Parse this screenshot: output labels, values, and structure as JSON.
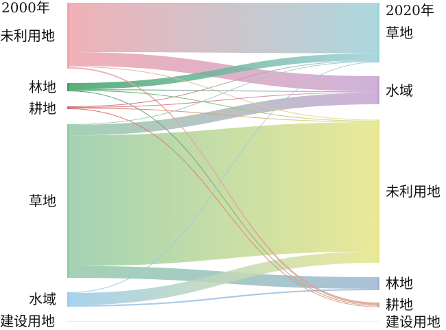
{
  "chart_data": {
    "type": "sankey",
    "left_year": "2000年",
    "right_year": "2020年",
    "left_nodes": [
      {
        "id": "L_unused",
        "label": "未利用地",
        "color": "#eea3ab"
      },
      {
        "id": "L_forest",
        "label": "林地",
        "color": "#3f9f63"
      },
      {
        "id": "L_farm",
        "label": "耕地",
        "color": "#d86464"
      },
      {
        "id": "L_grass",
        "label": "草地",
        "color": "#93caa6"
      },
      {
        "id": "L_water",
        "label": "水域",
        "color": "#99c9ea"
      },
      {
        "id": "L_built",
        "label": "建设用地",
        "color": "#e8e8e8"
      }
    ],
    "right_nodes": [
      {
        "id": "R_grass",
        "label": "草地",
        "color": "#9dd1d8"
      },
      {
        "id": "R_water",
        "label": "水域",
        "color": "#c7a4d2"
      },
      {
        "id": "R_unused",
        "label": "未利用地",
        "color": "#e7e586"
      },
      {
        "id": "R_forest",
        "label": "林地",
        "color": "#9bb6d2"
      },
      {
        "id": "R_farm",
        "label": "耕地",
        "color": "#d9a38e"
      },
      {
        "id": "R_built",
        "label": "建设用地",
        "color": "#eeeeee"
      }
    ],
    "links": [
      {
        "source": "L_unused",
        "target": "R_grass",
        "value": 72
      },
      {
        "source": "L_unused",
        "target": "R_water",
        "value": 20
      },
      {
        "source": "L_unused",
        "target": "R_farm",
        "value": 2
      },
      {
        "source": "L_unused",
        "target": "R_unused",
        "value": 2
      },
      {
        "source": "L_forest",
        "target": "R_grass",
        "value": 10
      },
      {
        "source": "L_forest",
        "target": "R_water",
        "value": 1
      },
      {
        "source": "L_forest",
        "target": "R_unused",
        "value": 1
      },
      {
        "source": "L_forest",
        "target": "R_farm",
        "value": 1
      },
      {
        "source": "L_farm",
        "target": "R_grass",
        "value": 1
      },
      {
        "source": "L_farm",
        "target": "R_water",
        "value": 1
      },
      {
        "source": "L_farm",
        "target": "R_unused",
        "value": 1
      },
      {
        "source": "L_farm",
        "target": "R_farm",
        "value": 1
      },
      {
        "source": "L_grass",
        "target": "R_water",
        "value": 15
      },
      {
        "source": "L_grass",
        "target": "R_unused",
        "value": 186
      },
      {
        "source": "L_grass",
        "target": "R_forest",
        "value": 17
      },
      {
        "source": "L_grass",
        "target": "R_grass",
        "value": 1
      },
      {
        "source": "L_water",
        "target": "R_grass",
        "value": 1
      },
      {
        "source": "L_water",
        "target": "R_unused",
        "value": 16
      },
      {
        "source": "L_water",
        "target": "R_forest",
        "value": 2
      },
      {
        "source": "L_built",
        "target": "R_built",
        "value": 1
      }
    ]
  }
}
